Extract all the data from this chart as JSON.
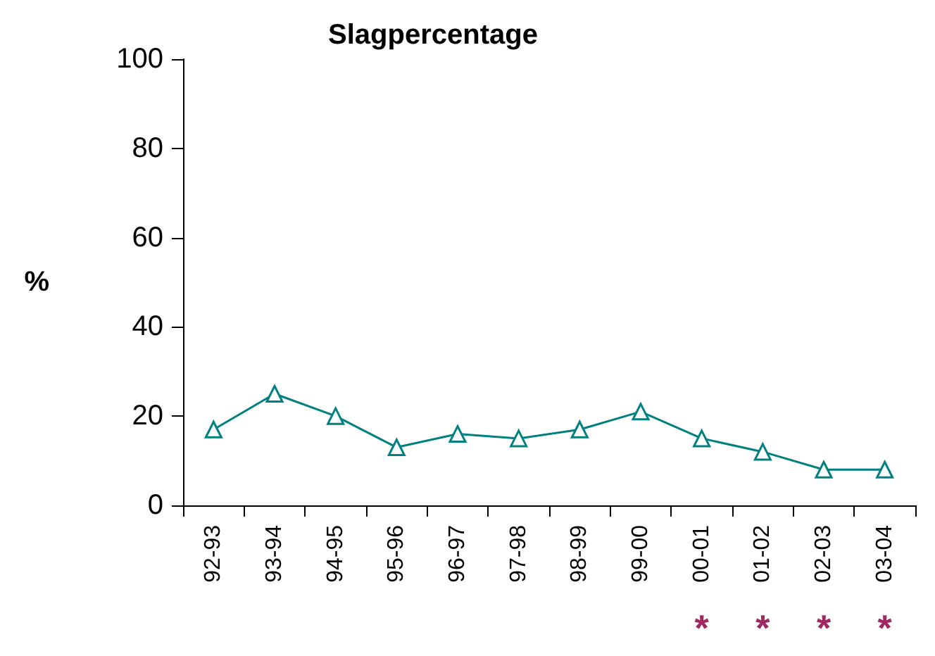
{
  "chart_data": {
    "type": "line",
    "title": "Slagpercentage",
    "ylabel": "%",
    "categories": [
      "92-93",
      "93-94",
      "94-95",
      "95-96",
      "96-97",
      "97-98",
      "98-99",
      "99-00",
      "00-01",
      "01-02",
      "02-03",
      "03-04"
    ],
    "series": [
      {
        "color": "#008080",
        "values": [
          17,
          25,
          20,
          13,
          16,
          15,
          17,
          21,
          15,
          12,
          8,
          8
        ]
      }
    ],
    "ylim": [
      0,
      100
    ],
    "yticks": [
      0,
      20,
      40,
      60,
      80,
      100
    ],
    "grid": false,
    "marker": "triangle",
    "line_style": "solid",
    "annotations": [
      "*",
      "*",
      "*",
      "*"
    ]
  }
}
